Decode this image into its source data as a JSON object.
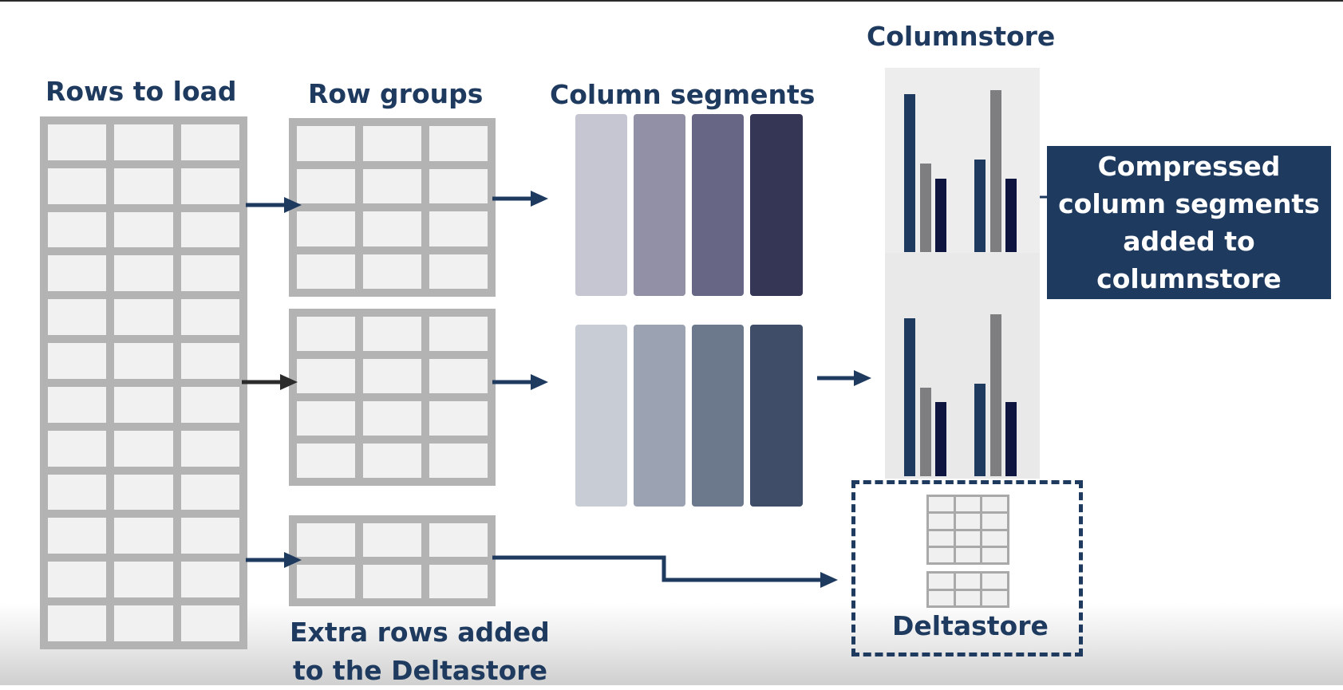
{
  "labels": {
    "rows_to_load": "Rows to load",
    "row_groups": "Row groups",
    "column_segments": "Column segments",
    "columnstore": "Columnstore",
    "compressed_note_lines": [
      "Compressed",
      "column segments",
      "added to",
      "columnstore"
    ],
    "extra_rows_lines": [
      "Extra rows added",
      "to the Deltastore"
    ],
    "deltastore": "Deltastore"
  },
  "colors": {
    "navy": "#1f3a5f",
    "grid_gray": "#b3b3b3",
    "cell_light": "#f1f1f1",
    "bar_gray": "#7e7e80",
    "bar_dark": "#0e1640",
    "segments_group_1": [
      "#c5c6d1",
      "#9190a6",
      "#676684",
      "#353556"
    ],
    "segments_group_2": [
      "#c8cdd5",
      "#9ba2b1",
      "#6c788b",
      "#3f4d68"
    ]
  },
  "structure": {
    "rows_to_load_blocks": 6,
    "rows_per_block": 2,
    "columns": 3,
    "row_group_rows": 4,
    "extra_rows": 2
  }
}
